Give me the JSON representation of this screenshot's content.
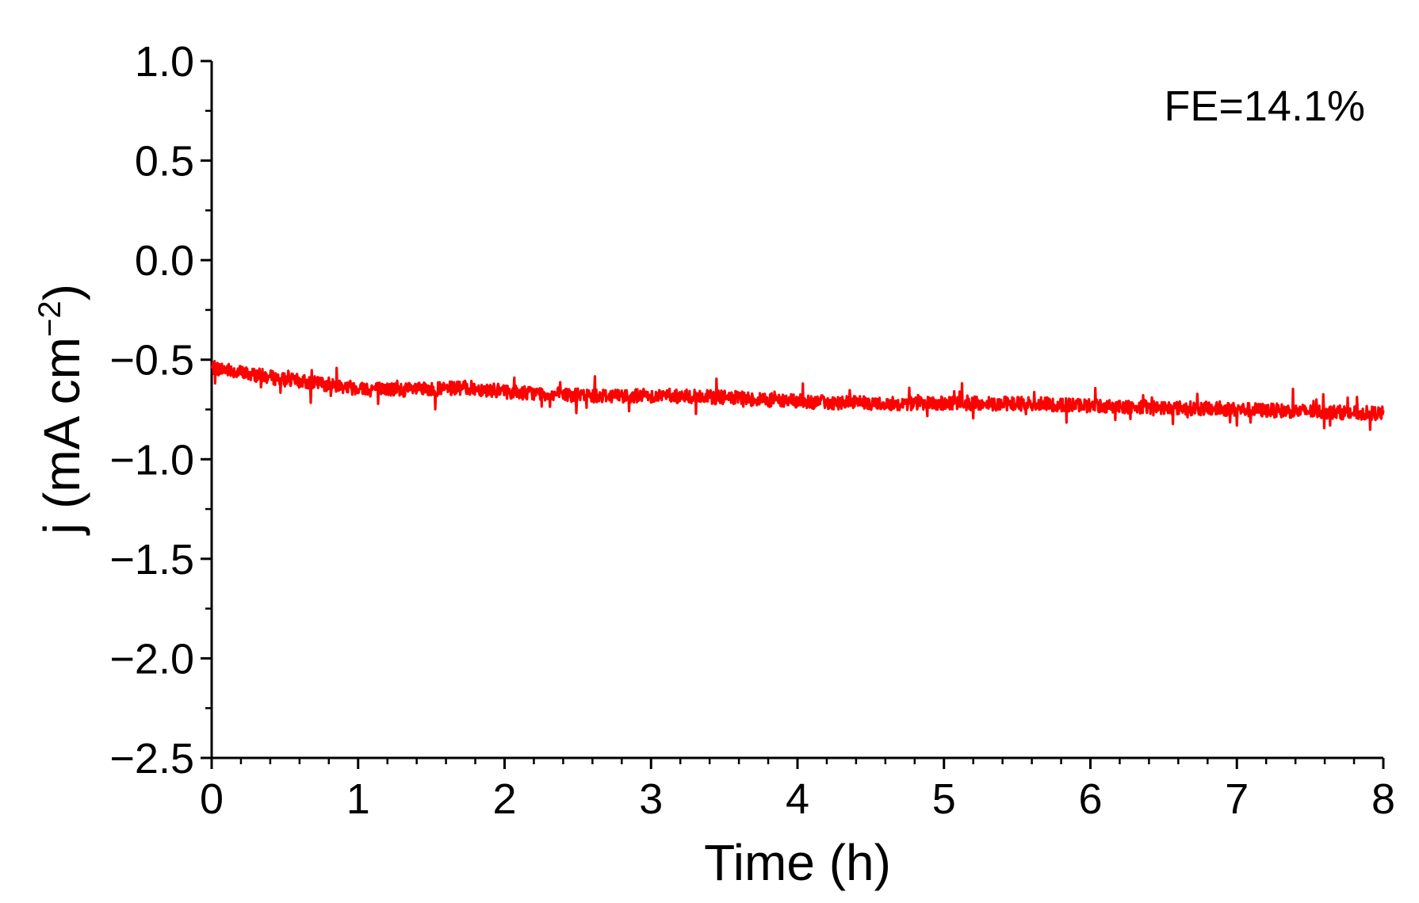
{
  "chart_data": {
    "type": "line",
    "title": "",
    "xlabel": "Time (h)",
    "ylabel_main": "j (mA cm",
    "ylabel_sup": "−2",
    "ylabel_close": ")",
    "xlim": [
      0,
      8
    ],
    "ylim": [
      -2.5,
      1.0
    ],
    "x_ticks": [
      0,
      1,
      2,
      3,
      4,
      5,
      6,
      7,
      8
    ],
    "x_tick_labels": [
      "0",
      "1",
      "2",
      "3",
      "4",
      "5",
      "6",
      "7",
      "8"
    ],
    "y_ticks": [
      1.0,
      0.5,
      0.0,
      -0.5,
      -1.0,
      -1.5,
      -2.0,
      -2.5
    ],
    "y_tick_labels": [
      "1.0",
      "0.5",
      "0.0",
      "−0.5",
      "−1.0",
      "−1.5",
      "−2.0",
      "−2.5"
    ],
    "grid": false,
    "annotation": "FE=14.1%",
    "series": [
      {
        "color": "#ff0000",
        "x": [
          0,
          0.1,
          0.25,
          0.5,
          0.75,
          1.0,
          1.25,
          1.5,
          1.75,
          2.0,
          2.5,
          3.0,
          3.5,
          4.0,
          4.5,
          5.0,
          5.5,
          6.0,
          6.5,
          7.0,
          7.5,
          8.0
        ],
        "y": [
          -0.54,
          -0.55,
          -0.57,
          -0.6,
          -0.62,
          -0.64,
          -0.65,
          -0.65,
          -0.64,
          -0.66,
          -0.68,
          -0.68,
          -0.69,
          -0.71,
          -0.72,
          -0.72,
          -0.72,
          -0.73,
          -0.74,
          -0.75,
          -0.76,
          -0.77
        ]
      }
    ]
  }
}
